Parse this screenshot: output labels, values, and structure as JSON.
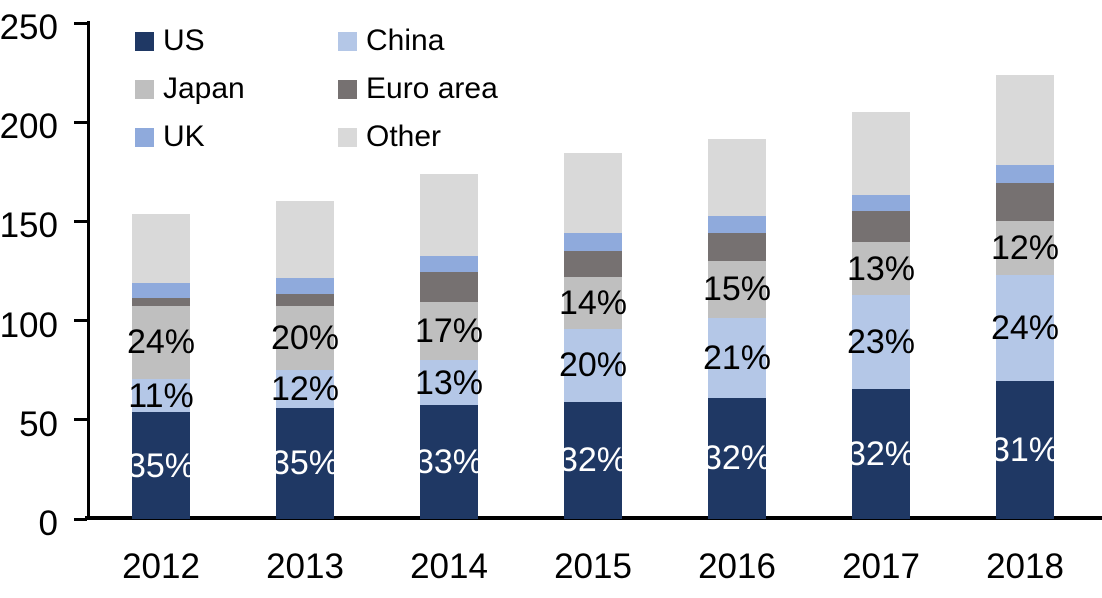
{
  "chart_data": {
    "type": "bar",
    "stacked": true,
    "title": "",
    "xlabel": "",
    "ylabel": "",
    "categories": [
      "2012",
      "2013",
      "2014",
      "2015",
      "2016",
      "2017",
      "2018"
    ],
    "series": [
      {
        "name": "US",
        "color": "#1F3864",
        "values": [
          53.7,
          56.1,
          57.3,
          59.1,
          61.2,
          65.6,
          69.4
        ],
        "labels": [
          "35%",
          "35%",
          "33%",
          "32%",
          "32%",
          "32%",
          "31%"
        ],
        "label_color": "#FFFFFF"
      },
      {
        "name": "China",
        "color": "#B4C7E7",
        "values": [
          16.9,
          19.2,
          22.6,
          36.9,
          40.2,
          47.2,
          53.7
        ],
        "labels": [
          "11%",
          "12%",
          "13%",
          "20%",
          "21%",
          "23%",
          "24%"
        ],
        "label_color": "#000000"
      },
      {
        "name": "Japan",
        "color": "#BFBFBF",
        "values": [
          36.8,
          32.0,
          29.5,
          25.8,
          28.7,
          26.7,
          26.9
        ],
        "labels": [
          "24%",
          "20%",
          "17%",
          "14%",
          "15%",
          "13%",
          "12%"
        ],
        "label_color": "#000000"
      },
      {
        "name": "Euro area",
        "color": "#767171",
        "values": [
          4.0,
          6.1,
          14.9,
          13.1,
          14.3,
          15.5,
          19.2
        ]
      },
      {
        "name": "UK",
        "color": "#8FAADC",
        "values": [
          7.5,
          8.2,
          8.4,
          9.2,
          8.1,
          8.3,
          9.4
        ]
      },
      {
        "name": "Other",
        "color": "#D9D9D9",
        "values": [
          34.6,
          38.6,
          41.0,
          40.5,
          38.8,
          41.7,
          45.3
        ]
      }
    ],
    "totals": [
      153.5,
      160.2,
      173.7,
      184.6,
      191.3,
      205.0,
      223.9
    ],
    "ylim": [
      0,
      250
    ],
    "yticks": [
      0,
      50,
      100,
      150,
      200,
      250
    ],
    "grid": false,
    "legend_position": "top-left",
    "legend_columns": 2,
    "legend_order": [
      "US",
      "China",
      "Japan",
      "Euro area",
      "UK",
      "Other"
    ],
    "axis_color": "#000000",
    "background": "#FFFFFF"
  }
}
